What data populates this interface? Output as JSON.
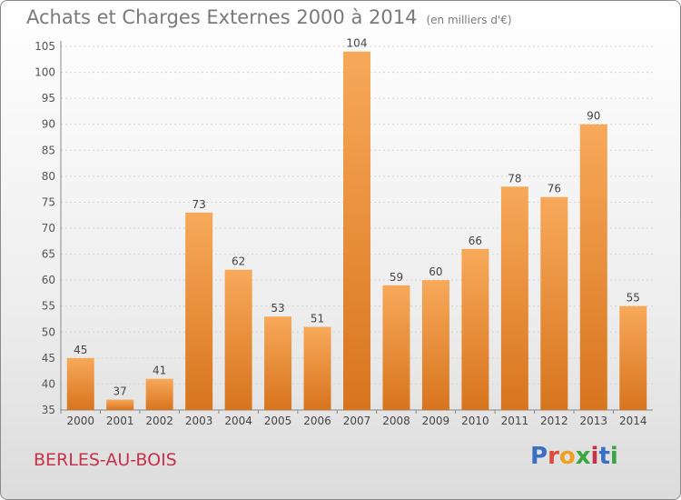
{
  "title": "Achats et Charges Externes 2000 à 2014",
  "unit_note": "(en milliers d'€)",
  "commune": "BERLES-AU-BOIS",
  "logo": "Proxiti",
  "colors": {
    "bar_light": "#f7a95a",
    "bar_dark": "#d8741e",
    "title": "#7a7a7a",
    "commune": "#c8314a"
  },
  "chart_data": {
    "type": "bar",
    "categories": [
      "2000",
      "2001",
      "2002",
      "2003",
      "2004",
      "2005",
      "2006",
      "2007",
      "2008",
      "2009",
      "2010",
      "2011",
      "2012",
      "2013",
      "2014"
    ],
    "values": [
      45,
      37,
      41,
      73,
      62,
      53,
      51,
      104,
      59,
      60,
      66,
      78,
      76,
      90,
      55
    ],
    "title": "Achats et Charges Externes 2000 à 2014",
    "xlabel": "",
    "ylabel": "",
    "ylim": [
      35,
      105
    ],
    "yticks": [
      35,
      40,
      45,
      50,
      55,
      60,
      65,
      70,
      75,
      80,
      85,
      90,
      95,
      100,
      105
    ],
    "grid": true
  }
}
